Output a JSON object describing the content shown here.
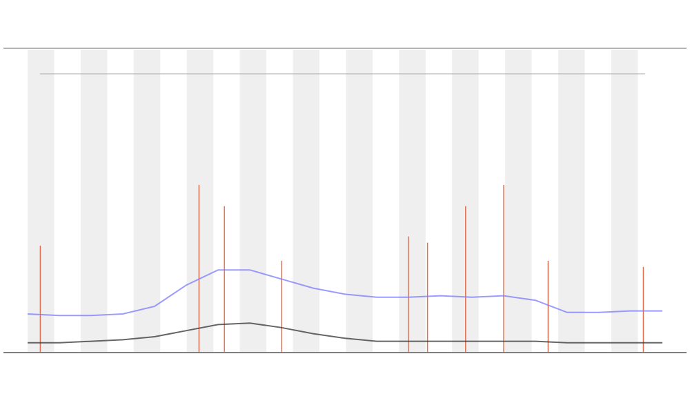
{
  "chart_data": {
    "type": "line",
    "x": [
      0,
      5,
      10,
      15,
      20,
      25,
      30,
      35,
      40,
      45,
      50,
      55,
      60,
      65,
      70,
      75,
      80,
      85,
      90,
      95,
      100
    ],
    "xlim": [
      0,
      100
    ],
    "ylim": [
      0,
      100
    ],
    "series": [
      {
        "color": "#333333",
        "values": [
          3,
          3,
          3.5,
          4,
          5,
          7,
          9,
          9.5,
          8,
          6,
          4.5,
          3.5,
          3.5,
          3.5,
          3.5,
          3.5,
          3.5,
          3,
          3,
          3,
          3
        ]
      },
      {
        "color": "#7a7aff",
        "values": [
          12.5,
          12,
          12,
          12.5,
          15,
          22,
          27,
          27,
          24,
          21,
          19,
          18,
          18,
          18.5,
          18,
          18.5,
          17,
          13,
          13,
          13.5,
          13.5
        ]
      }
    ],
    "spikes": {
      "color": "#e0502a",
      "x": [
        2,
        27,
        31,
        40,
        60,
        63,
        69,
        75,
        82,
        97
      ],
      "values": [
        35,
        55,
        48,
        30,
        38,
        36,
        48,
        55,
        30,
        28
      ]
    }
  }
}
